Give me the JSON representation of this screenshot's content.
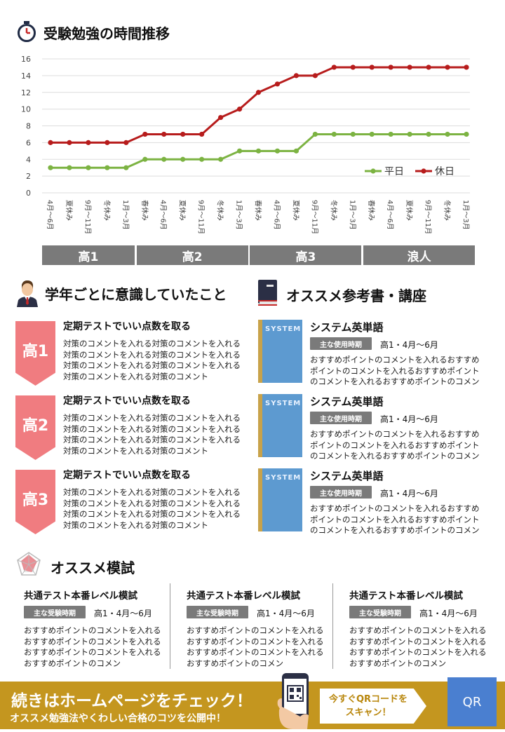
{
  "chart_section": {
    "title": "受験勉強の時間推移",
    "icon": "stopwatch-icon"
  },
  "chart_data": {
    "type": "line",
    "categories": [
      "4月〜6月",
      "夏休み",
      "9月〜11月",
      "冬休み",
      "1月〜3月",
      "春休み",
      "4月〜6月",
      "夏休み",
      "9月〜11月",
      "冬休み",
      "1月〜3月",
      "春休み",
      "4月〜6月",
      "夏休み",
      "9月〜11月",
      "冬休み",
      "1月〜3月",
      "春休み",
      "4月〜6月",
      "夏休み",
      "9月〜11月",
      "冬休み",
      "1月〜3月"
    ],
    "series": [
      {
        "name": "平日",
        "color": "#7cb342",
        "values": [
          3,
          3,
          3,
          3,
          3,
          4,
          4,
          4,
          4,
          4,
          5,
          5,
          5,
          5,
          7,
          7,
          7,
          7,
          7,
          7,
          7,
          7,
          7
        ]
      },
      {
        "name": "休日",
        "color": "#b71c1c",
        "values": [
          6,
          6,
          6,
          6,
          6,
          7,
          7,
          7,
          7,
          9,
          10,
          12,
          13,
          14,
          14,
          15,
          15,
          15,
          15,
          15,
          15,
          15,
          15
        ]
      }
    ],
    "ylim": [
      0,
      16
    ],
    "yticks": [
      0,
      2,
      4,
      6,
      8,
      10,
      12,
      14,
      16
    ],
    "grid": true,
    "legend": "bottom-right",
    "bands": [
      {
        "label": "高1",
        "start": 0,
        "end": 4
      },
      {
        "label": "高2",
        "start": 5,
        "end": 10
      },
      {
        "label": "高3",
        "start": 11,
        "end": 16
      },
      {
        "label": "浪人",
        "start": 17,
        "end": 22
      }
    ]
  },
  "grade_section": {
    "title": "学年ごとに意識していたこと",
    "icon": "student-icon",
    "items": [
      {
        "grade": "高1",
        "title": "定期テストでいい点数を取る",
        "body": "対策のコメントを入れる対策のコメントを入れる対策のコメントを入れる対策のコメントを入れる対策のコメントを入れる対策のコメントを入れる対策のコメントを入れる対策のコメント"
      },
      {
        "grade": "高2",
        "title": "定期テストでいい点数を取る",
        "body": "対策のコメントを入れる対策のコメントを入れる対策のコメントを入れる対策のコメントを入れる対策のコメントを入れる対策のコメントを入れる対策のコメントを入れる対策のコメント"
      },
      {
        "grade": "高3",
        "title": "定期テストでいい点数を取る",
        "body": "対策のコメントを入れる対策のコメントを入れる対策のコメントを入れる対策のコメントを入れる対策のコメントを入れる対策のコメントを入れる対策のコメントを入れる対策のコメント"
      }
    ]
  },
  "book_section": {
    "title": "オススメ参考書・講座",
    "icon": "book-icon",
    "items": [
      {
        "title": "システム英単語",
        "pill": "主な使用時期",
        "period": "高1・4月〜6月",
        "body": "おすすめポイントのコメントを入れるおすすめポイントのコメントを入れるおすすめポイントのコメントを入れるおすすめポイントのコメン",
        "cover": "SYSTEM"
      },
      {
        "title": "システム英単語",
        "pill": "主な使用時期",
        "period": "高1・4月〜6月",
        "body": "おすすめポイントのコメントを入れるおすすめポイントのコメントを入れるおすすめポイントのコメントを入れるおすすめポイントのコメン",
        "cover": "SYSTEM"
      },
      {
        "title": "システム英単語",
        "pill": "主な使用時期",
        "period": "高1・4月〜6月",
        "body": "おすすめポイントのコメントを入れるおすすめポイントのコメントを入れるおすすめポイントのコメントを入れるおすすめポイントのコメン",
        "cover": "SYSTEM"
      }
    ]
  },
  "exam_section": {
    "title": "オススメ模試",
    "icon": "radar-chart-icon",
    "items": [
      {
        "title": "共通テスト本番レベル模試",
        "pill": "主な受験時期",
        "period": "高1・4月〜6月",
        "body": "おすすめポイントのコメントを入れるおすすめポイントのコメントを入れるおすすめポイントのコメントを入れるおすすめポイントのコメン"
      },
      {
        "title": "共通テスト本番レベル模試",
        "pill": "主な受験時期",
        "period": "高1・4月〜6月",
        "body": "おすすめポイントのコメントを入れるおすすめポイントのコメントを入れるおすすめポイントのコメントを入れるおすすめポイントのコメン"
      },
      {
        "title": "共通テスト本番レベル模試",
        "pill": "主な受験時期",
        "period": "高1・4月〜6月",
        "body": "おすすめポイントのコメントを入れるおすすめポイントのコメントを入れるおすすめポイントのコメントを入れるおすすめポイントのコメン"
      }
    ]
  },
  "banner": {
    "headline": "続きはホームページをチェック！",
    "subline": "オススメ勉強法やくわしい合格のコツを公開中！",
    "cta_line1": "今すぐQRコードを",
    "cta_line2": "スキャン！",
    "qr_label": "QR",
    "icon": "phone-qr-icon",
    "color": "#c4961f"
  }
}
